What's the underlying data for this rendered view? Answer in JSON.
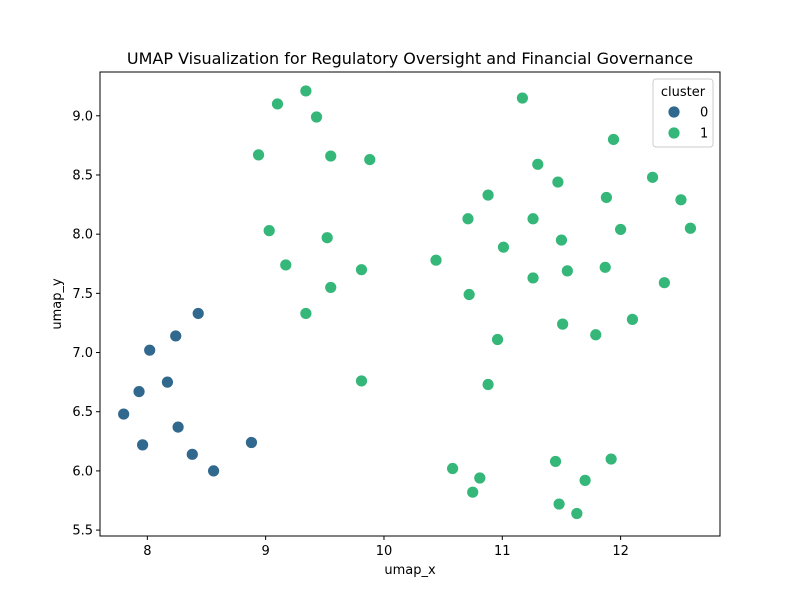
{
  "chart_data": {
    "type": "scatter",
    "title": "UMAP Visualization for Regulatory Oversight and Financial Governance",
    "xlabel": "umap_x",
    "ylabel": "umap_y",
    "xlim": [
      7.6,
      12.84
    ],
    "ylim": [
      5.45,
      9.37
    ],
    "xticks": [
      8,
      9,
      10,
      11,
      12
    ],
    "xtick_labels": [
      "8",
      "9",
      "10",
      "11",
      "12"
    ],
    "yticks": [
      5.5,
      6.0,
      6.5,
      7.0,
      7.5,
      8.0,
      8.5,
      9.0
    ],
    "ytick_labels": [
      "5.5",
      "6.0",
      "6.5",
      "7.0",
      "7.5",
      "8.0",
      "8.5",
      "9.0"
    ],
    "grid": false,
    "legend": {
      "title": "cluster",
      "position": "top-right"
    },
    "series": [
      {
        "name": "0",
        "color": "#31688e",
        "points": [
          [
            8.43,
            7.33
          ],
          [
            8.24,
            7.14
          ],
          [
            8.02,
            7.02
          ],
          [
            8.17,
            6.75
          ],
          [
            7.93,
            6.67
          ],
          [
            7.8,
            6.48
          ],
          [
            8.26,
            6.37
          ],
          [
            7.96,
            6.22
          ],
          [
            8.38,
            6.14
          ],
          [
            8.56,
            6.0
          ],
          [
            8.88,
            6.24
          ]
        ]
      },
      {
        "name": "1",
        "color": "#35b779",
        "points": [
          [
            9.34,
            9.21
          ],
          [
            9.1,
            9.1
          ],
          [
            9.43,
            8.99
          ],
          [
            8.94,
            8.67
          ],
          [
            9.55,
            8.66
          ],
          [
            9.88,
            8.63
          ],
          [
            9.03,
            8.03
          ],
          [
            9.52,
            7.97
          ],
          [
            9.17,
            7.74
          ],
          [
            9.81,
            7.7
          ],
          [
            9.55,
            7.55
          ],
          [
            9.34,
            7.33
          ],
          [
            9.81,
            6.76
          ],
          [
            11.17,
            9.15
          ],
          [
            11.94,
            8.8
          ],
          [
            11.3,
            8.59
          ],
          [
            12.27,
            8.48
          ],
          [
            11.47,
            8.44
          ],
          [
            10.88,
            8.33
          ],
          [
            11.88,
            8.31
          ],
          [
            12.51,
            8.29
          ],
          [
            10.71,
            8.13
          ],
          [
            11.26,
            8.13
          ],
          [
            12.0,
            8.04
          ],
          [
            12.59,
            8.05
          ],
          [
            11.5,
            7.95
          ],
          [
            11.01,
            7.89
          ],
          [
            10.44,
            7.78
          ],
          [
            11.87,
            7.72
          ],
          [
            11.55,
            7.69
          ],
          [
            11.26,
            7.63
          ],
          [
            12.37,
            7.59
          ],
          [
            10.72,
            7.49
          ],
          [
            11.51,
            7.24
          ],
          [
            12.1,
            7.28
          ],
          [
            10.96,
            7.11
          ],
          [
            11.79,
            7.15
          ],
          [
            10.88,
            6.73
          ],
          [
            10.58,
            6.02
          ],
          [
            10.81,
            5.94
          ],
          [
            11.45,
            6.08
          ],
          [
            11.92,
            6.1
          ],
          [
            10.75,
            5.82
          ],
          [
            11.7,
            5.92
          ],
          [
            11.48,
            5.72
          ],
          [
            11.63,
            5.64
          ]
        ]
      }
    ]
  }
}
